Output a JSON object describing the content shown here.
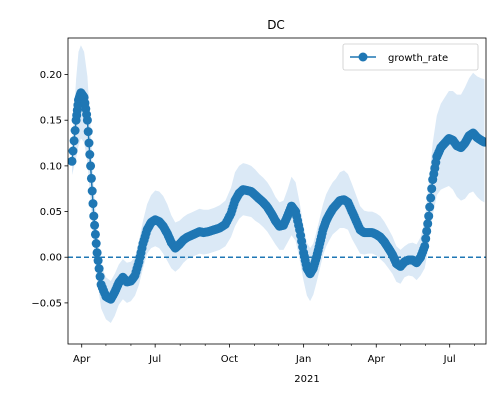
{
  "chart_data": {
    "type": "line",
    "title": "DC",
    "xlabel": "",
    "ylabel": "",
    "x_range": [
      "2020-03-15",
      "2021-08-15"
    ],
    "ylim": [
      -0.095,
      0.24
    ],
    "year_label": "2021",
    "x_tick_labels": [
      "Apr",
      "Jul",
      "Oct",
      "Jan",
      "Apr",
      "Jul"
    ],
    "y_tick_labels": [
      "−0.05",
      "0.00",
      "0.05",
      "0.10",
      "0.15",
      "0.20"
    ],
    "reference_line": {
      "y": 0.0,
      "style": "dashed"
    },
    "legend": {
      "entries": [
        "growth_rate"
      ],
      "location": "upper right"
    },
    "colors": {
      "series": "#1f77b4",
      "band": "#dbe9f6"
    },
    "grid": false,
    "series": [
      {
        "name": "growth_rate",
        "x": [
          "2020-03-20",
          "2020-03-25",
          "2020-03-28",
          "2020-03-31",
          "2020-04-04",
          "2020-04-08",
          "2020-04-12",
          "2020-04-16",
          "2020-04-20",
          "2020-04-25",
          "2020-05-01",
          "2020-05-07",
          "2020-05-12",
          "2020-05-17",
          "2020-05-22",
          "2020-05-27",
          "2020-06-01",
          "2020-06-06",
          "2020-06-11",
          "2020-06-16",
          "2020-06-21",
          "2020-06-26",
          "2020-07-01",
          "2020-07-06",
          "2020-07-11",
          "2020-07-16",
          "2020-07-21",
          "2020-07-26",
          "2020-07-31",
          "2020-08-05",
          "2020-08-10",
          "2020-08-15",
          "2020-08-20",
          "2020-08-25",
          "2020-08-30",
          "2020-09-05",
          "2020-09-12",
          "2020-09-19",
          "2020-09-26",
          "2020-10-03",
          "2020-10-08",
          "2020-10-13",
          "2020-10-18",
          "2020-10-23",
          "2020-10-28",
          "2020-11-02",
          "2020-11-07",
          "2020-11-12",
          "2020-11-17",
          "2020-11-22",
          "2020-11-27",
          "2020-12-02",
          "2020-12-07",
          "2020-12-12",
          "2020-12-17",
          "2020-12-22",
          "2020-12-27",
          "2021-01-01",
          "2021-01-05",
          "2021-01-09",
          "2021-01-13",
          "2021-01-17",
          "2021-01-21",
          "2021-01-25",
          "2021-01-29",
          "2021-02-02",
          "2021-02-06",
          "2021-02-10",
          "2021-02-15",
          "2021-02-20",
          "2021-02-25",
          "2021-03-02",
          "2021-03-07",
          "2021-03-12",
          "2021-03-17",
          "2021-03-22",
          "2021-03-27",
          "2021-04-01",
          "2021-04-06",
          "2021-04-11",
          "2021-04-16",
          "2021-04-21",
          "2021-04-26",
          "2021-05-01",
          "2021-05-06",
          "2021-05-11",
          "2021-05-16",
          "2021-05-21",
          "2021-05-26",
          "2021-05-31",
          "2021-06-05",
          "2021-06-10",
          "2021-06-15",
          "2021-06-20",
          "2021-06-25",
          "2021-06-30",
          "2021-07-05",
          "2021-07-10",
          "2021-07-15",
          "2021-07-20",
          "2021-07-25",
          "2021-07-30",
          "2021-08-04",
          "2021-08-09",
          "2021-08-13"
        ],
        "values": [
          0.105,
          0.15,
          0.172,
          0.18,
          0.175,
          0.15,
          0.1,
          0.045,
          0.005,
          -0.03,
          -0.043,
          -0.046,
          -0.038,
          -0.028,
          -0.022,
          -0.027,
          -0.026,
          -0.02,
          -0.005,
          0.015,
          0.03,
          0.038,
          0.041,
          0.039,
          0.034,
          0.026,
          0.016,
          0.01,
          0.014,
          0.019,
          0.022,
          0.024,
          0.026,
          0.028,
          0.027,
          0.028,
          0.03,
          0.032,
          0.036,
          0.048,
          0.062,
          0.07,
          0.074,
          0.073,
          0.072,
          0.068,
          0.064,
          0.06,
          0.055,
          0.048,
          0.04,
          0.034,
          0.035,
          0.045,
          0.056,
          0.05,
          0.03,
          0.005,
          -0.012,
          -0.018,
          -0.012,
          0.0,
          0.015,
          0.03,
          0.04,
          0.047,
          0.053,
          0.057,
          0.062,
          0.063,
          0.06,
          0.05,
          0.04,
          0.03,
          0.027,
          0.027,
          0.027,
          0.025,
          0.022,
          0.017,
          0.01,
          0.003,
          -0.007,
          -0.01,
          -0.005,
          -0.003,
          -0.003,
          -0.006,
          0.0,
          0.012,
          0.045,
          0.085,
          0.11,
          0.12,
          0.125,
          0.13,
          0.128,
          0.122,
          0.12,
          0.125,
          0.133,
          0.136,
          0.131,
          0.128,
          0.126
        ]
      }
    ],
    "band": {
      "upper": [
        0.12,
        0.195,
        0.225,
        0.232,
        0.225,
        0.198,
        0.142,
        0.075,
        0.03,
        -0.008,
        -0.022,
        -0.026,
        -0.018,
        -0.008,
        -0.002,
        -0.006,
        -0.005,
        0.0,
        0.018,
        0.04,
        0.058,
        0.068,
        0.073,
        0.072,
        0.067,
        0.058,
        0.046,
        0.038,
        0.04,
        0.044,
        0.047,
        0.049,
        0.051,
        0.053,
        0.052,
        0.052,
        0.054,
        0.057,
        0.062,
        0.076,
        0.093,
        0.1,
        0.103,
        0.102,
        0.1,
        0.096,
        0.091,
        0.087,
        0.082,
        0.075,
        0.066,
        0.06,
        0.062,
        0.074,
        0.088,
        0.082,
        0.06,
        0.034,
        0.016,
        0.01,
        0.015,
        0.028,
        0.043,
        0.058,
        0.069,
        0.076,
        0.082,
        0.086,
        0.093,
        0.095,
        0.091,
        0.08,
        0.068,
        0.056,
        0.051,
        0.05,
        0.05,
        0.048,
        0.045,
        0.039,
        0.031,
        0.023,
        0.012,
        0.008,
        0.012,
        0.015,
        0.016,
        0.014,
        0.022,
        0.04,
        0.08,
        0.125,
        0.155,
        0.168,
        0.175,
        0.182,
        0.182,
        0.178,
        0.178,
        0.186,
        0.196,
        0.202,
        0.198,
        0.196,
        0.195
      ],
      "lower": [
        0.09,
        0.108,
        0.122,
        0.13,
        0.126,
        0.104,
        0.06,
        0.012,
        -0.024,
        -0.056,
        -0.068,
        -0.072,
        -0.064,
        -0.052,
        -0.046,
        -0.05,
        -0.048,
        -0.042,
        -0.03,
        -0.012,
        0.004,
        0.01,
        0.012,
        0.01,
        0.004,
        -0.004,
        -0.012,
        -0.016,
        -0.012,
        -0.006,
        -0.002,
        0.0,
        0.002,
        0.004,
        0.003,
        0.004,
        0.006,
        0.008,
        0.012,
        0.022,
        0.034,
        0.042,
        0.046,
        0.045,
        0.044,
        0.04,
        0.037,
        0.033,
        0.028,
        0.021,
        0.014,
        0.008,
        0.008,
        0.016,
        0.024,
        0.018,
        -0.002,
        -0.026,
        -0.042,
        -0.048,
        -0.041,
        -0.028,
        -0.013,
        0.002,
        0.012,
        0.019,
        0.025,
        0.028,
        0.032,
        0.032,
        0.03,
        0.02,
        0.012,
        0.004,
        0.003,
        0.004,
        0.004,
        0.002,
        -0.002,
        -0.006,
        -0.012,
        -0.018,
        -0.027,
        -0.029,
        -0.022,
        -0.02,
        -0.021,
        -0.025,
        -0.02,
        -0.012,
        0.012,
        0.045,
        0.068,
        0.074,
        0.076,
        0.078,
        0.074,
        0.066,
        0.062,
        0.064,
        0.07,
        0.072,
        0.066,
        0.062,
        0.06
      ]
    }
  }
}
